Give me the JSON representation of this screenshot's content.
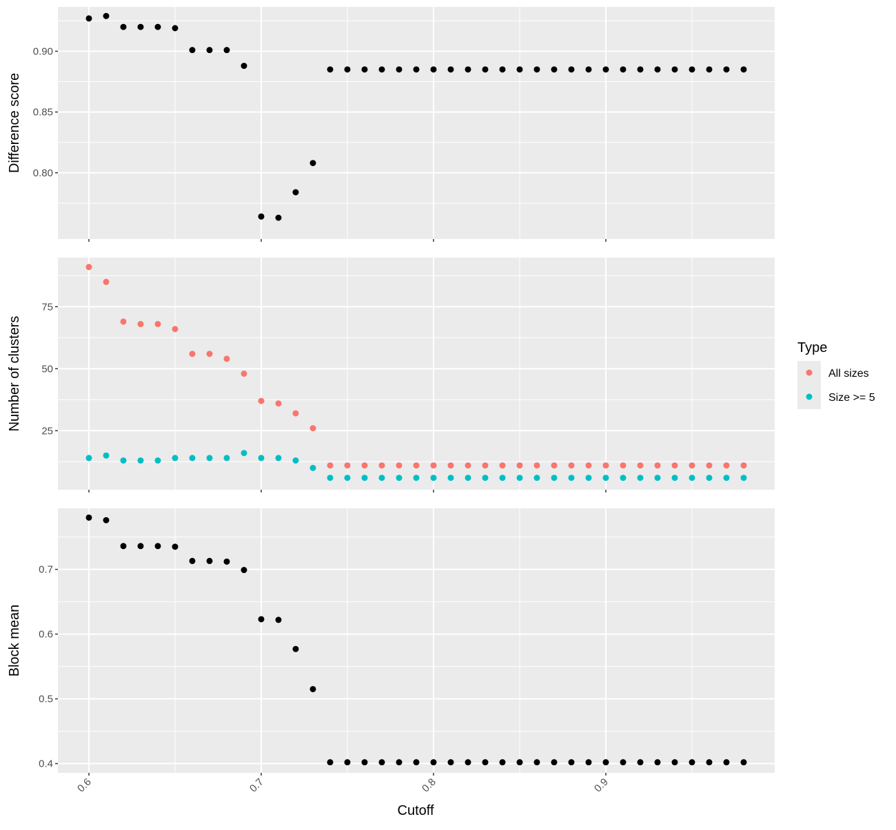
{
  "chart_data": {
    "type": "scatter",
    "xlabel": "Cutoff",
    "xlim": [
      0.582,
      0.998
    ],
    "x_ticks": [
      0.6,
      0.7,
      0.8,
      0.9
    ],
    "x_tick_labels": [
      "0.6",
      "0.7",
      "0.8",
      "0.9"
    ],
    "grid": true,
    "legend": {
      "title": "Type",
      "placement": "right",
      "entries": [
        {
          "label": "All sizes",
          "color": "#F8766D"
        },
        {
          "label": "Size >= 5",
          "color": "#00BFC4"
        }
      ]
    },
    "panels": [
      {
        "name": "difference-score",
        "ylabel": "Difference score",
        "ylim": [
          0.7455,
          0.9365
        ],
        "y_ticks": [
          0.8,
          0.85,
          0.9
        ],
        "y_tick_labels": [
          "0.80",
          "0.85",
          "0.90"
        ],
        "series": [
          {
            "color": "#000000",
            "x": [
              0.6,
              0.61,
              0.62,
              0.63,
              0.64,
              0.65,
              0.66,
              0.67,
              0.68,
              0.69,
              0.7,
              0.71,
              0.72,
              0.73,
              0.74,
              0.75,
              0.76,
              0.77,
              0.78,
              0.79,
              0.8,
              0.81,
              0.82,
              0.83,
              0.84,
              0.85,
              0.86,
              0.87,
              0.88,
              0.89,
              0.9,
              0.91,
              0.92,
              0.93,
              0.94,
              0.95,
              0.96,
              0.97,
              0.98
            ],
            "y": [
              0.927,
              0.929,
              0.92,
              0.92,
              0.92,
              0.919,
              0.901,
              0.901,
              0.901,
              0.888,
              0.764,
              0.763,
              0.784,
              0.808,
              0.885,
              0.885,
              0.885,
              0.885,
              0.885,
              0.885,
              0.885,
              0.885,
              0.885,
              0.885,
              0.885,
              0.885,
              0.885,
              0.885,
              0.885,
              0.885,
              0.885,
              0.885,
              0.885,
              0.885,
              0.885,
              0.885,
              0.885,
              0.885,
              0.885
            ]
          }
        ]
      },
      {
        "name": "number-of-clusters",
        "ylabel": "Number of clusters",
        "ylim": [
          1.2,
          94.8
        ],
        "y_ticks": [
          25,
          50,
          75
        ],
        "y_tick_labels": [
          "25",
          "50",
          "75"
        ],
        "series": [
          {
            "name": "All sizes",
            "color": "#F8766D",
            "x": [
              0.6,
              0.61,
              0.62,
              0.63,
              0.64,
              0.65,
              0.66,
              0.67,
              0.68,
              0.69,
              0.7,
              0.71,
              0.72,
              0.73,
              0.74,
              0.75,
              0.76,
              0.77,
              0.78,
              0.79,
              0.8,
              0.81,
              0.82,
              0.83,
              0.84,
              0.85,
              0.86,
              0.87,
              0.88,
              0.89,
              0.9,
              0.91,
              0.92,
              0.93,
              0.94,
              0.95,
              0.96,
              0.97,
              0.98
            ],
            "y": [
              91,
              85,
              69,
              68,
              68,
              66,
              56,
              56,
              54,
              48,
              37,
              36,
              32,
              26,
              11,
              11,
              11,
              11,
              11,
              11,
              11,
              11,
              11,
              11,
              11,
              11,
              11,
              11,
              11,
              11,
              11,
              11,
              11,
              11,
              11,
              11,
              11,
              11,
              11
            ]
          },
          {
            "name": "Size >= 5",
            "color": "#00BFC4",
            "x": [
              0.6,
              0.61,
              0.62,
              0.63,
              0.64,
              0.65,
              0.66,
              0.67,
              0.68,
              0.69,
              0.7,
              0.71,
              0.72,
              0.73,
              0.74,
              0.75,
              0.76,
              0.77,
              0.78,
              0.79,
              0.8,
              0.81,
              0.82,
              0.83,
              0.84,
              0.85,
              0.86,
              0.87,
              0.88,
              0.89,
              0.9,
              0.91,
              0.92,
              0.93,
              0.94,
              0.95,
              0.96,
              0.97,
              0.98
            ],
            "y": [
              14,
              15,
              13,
              13,
              13,
              14,
              14,
              14,
              14,
              16,
              14,
              14,
              13,
              10,
              6,
              6,
              6,
              6,
              6,
              6,
              6,
              6,
              6,
              6,
              6,
              6,
              6,
              6,
              6,
              6,
              6,
              6,
              6,
              6,
              6,
              6,
              6,
              6,
              6
            ]
          }
        ]
      },
      {
        "name": "block-mean",
        "ylabel": "Block mean",
        "ylim": [
          0.3857,
          0.7943
        ],
        "y_ticks": [
          0.4,
          0.5,
          0.6,
          0.7
        ],
        "y_tick_labels": [
          "0.4",
          "0.5",
          "0.6",
          "0.7"
        ],
        "series": [
          {
            "color": "#000000",
            "x": [
              0.6,
              0.61,
              0.62,
              0.63,
              0.64,
              0.65,
              0.66,
              0.67,
              0.68,
              0.69,
              0.7,
              0.71,
              0.72,
              0.73,
              0.74,
              0.75,
              0.76,
              0.77,
              0.78,
              0.79,
              0.8,
              0.81,
              0.82,
              0.83,
              0.84,
              0.85,
              0.86,
              0.87,
              0.88,
              0.89,
              0.9,
              0.91,
              0.92,
              0.93,
              0.94,
              0.95,
              0.96,
              0.97,
              0.98
            ],
            "y": [
              0.78,
              0.776,
              0.736,
              0.736,
              0.736,
              0.735,
              0.713,
              0.713,
              0.712,
              0.699,
              0.623,
              0.622,
              0.577,
              0.515,
              0.402,
              0.402,
              0.402,
              0.402,
              0.402,
              0.402,
              0.402,
              0.402,
              0.402,
              0.402,
              0.402,
              0.402,
              0.402,
              0.402,
              0.402,
              0.402,
              0.402,
              0.402,
              0.402,
              0.402,
              0.402,
              0.402,
              0.402,
              0.402,
              0.402
            ]
          }
        ]
      }
    ]
  }
}
